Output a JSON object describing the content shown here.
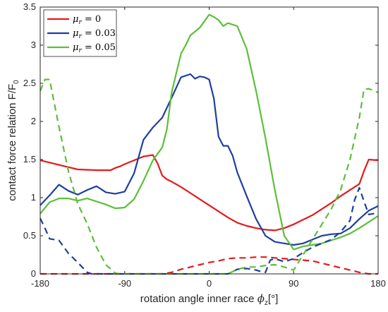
{
  "chart_data": {
    "type": "line",
    "xlabel": "rotation angle inner race",
    "xlabel_symbol": "ϕ",
    "xlabel_sub": "z",
    "xlabel_unit": "[°]",
    "ylabel": "contact force relation F/F",
    "ylabel_sub": "0",
    "xlim": [
      -180,
      180
    ],
    "ylim": [
      0,
      3.5
    ],
    "xticks": [
      -180,
      -90,
      0,
      90,
      180
    ],
    "yticks": [
      0,
      0.5,
      1,
      1.5,
      2,
      2.5,
      3,
      3.5
    ],
    "xtick_labels": [
      "-180",
      "-90",
      "0",
      "90",
      "180"
    ],
    "ytick_labels": [
      "0",
      "0.5",
      "1",
      "1.5",
      "2",
      "2.5",
      "3",
      "3.5"
    ],
    "grid": false,
    "legend_position": "top-left",
    "legend": [
      {
        "symbol": "μ",
        "sub": "r",
        "rest": " = 0",
        "color": "#e31a1c"
      },
      {
        "symbol": "μ",
        "sub": "r",
        "rest": " = 0.03",
        "color": "#1f3f9f"
      },
      {
        "symbol": "μ",
        "sub": "r",
        "rest": " = 0.05",
        "color": "#5bbf3a"
      }
    ],
    "series": [
      {
        "legend_index": 0,
        "style": "solid",
        "color": "#e31a1c",
        "x": [
          -180,
          -160,
          -140,
          -120,
          -105,
          -100,
          -95,
          -90,
          -80,
          -70,
          -60,
          -55,
          -50,
          -45,
          -40,
          -30,
          -20,
          -10,
          0,
          10,
          20,
          30,
          40,
          50,
          60,
          70,
          80,
          90,
          100,
          110,
          120,
          130,
          140,
          150,
          160,
          165,
          170,
          180
        ],
        "y": [
          1.49,
          1.43,
          1.37,
          1.36,
          1.36,
          1.39,
          1.41,
          1.44,
          1.49,
          1.54,
          1.56,
          1.45,
          1.29,
          1.24,
          1.21,
          1.14,
          1.06,
          0.98,
          0.9,
          0.82,
          0.74,
          0.67,
          0.63,
          0.6,
          0.58,
          0.57,
          0.6,
          0.65,
          0.71,
          0.77,
          0.85,
          0.93,
          1.02,
          1.1,
          1.18,
          1.35,
          1.5,
          1.49
        ]
      },
      {
        "legend_index": 1,
        "style": "solid",
        "color": "#1f3f9f",
        "x": [
          -180,
          -170,
          -160,
          -150,
          -140,
          -130,
          -120,
          -115,
          -110,
          -100,
          -90,
          -80,
          -70,
          -60,
          -50,
          -40,
          -30,
          -20,
          -15,
          -10,
          -5,
          0,
          5,
          10,
          15,
          20,
          25,
          30,
          40,
          50,
          60,
          70,
          80,
          90,
          100,
          110,
          120,
          130,
          140,
          150,
          160,
          170,
          180
        ],
        "y": [
          0.9,
          1.03,
          1.17,
          1.09,
          1.04,
          1.1,
          1.15,
          1.11,
          1.07,
          1.05,
          1.08,
          1.32,
          1.76,
          1.92,
          2.05,
          2.31,
          2.58,
          2.62,
          2.56,
          2.59,
          2.58,
          2.55,
          2.3,
          1.8,
          1.68,
          1.68,
          1.55,
          1.33,
          1.02,
          0.72,
          0.5,
          0.42,
          0.4,
          0.38,
          0.4,
          0.45,
          0.5,
          0.52,
          0.53,
          0.6,
          0.72,
          0.83,
          0.89
        ]
      },
      {
        "legend_index": 2,
        "style": "solid",
        "color": "#5bbf3a",
        "x": [
          -180,
          -170,
          -160,
          -150,
          -140,
          -130,
          -120,
          -110,
          -100,
          -90,
          -80,
          -70,
          -60,
          -50,
          -45,
          -40,
          -30,
          -25,
          -20,
          -10,
          0,
          5,
          10,
          15,
          20,
          30,
          40,
          50,
          60,
          70,
          80,
          90,
          100,
          110,
          120,
          130,
          140,
          150,
          160,
          170,
          180
        ],
        "y": [
          0.79,
          0.94,
          0.99,
          0.99,
          0.96,
          0.99,
          0.95,
          0.91,
          0.86,
          0.87,
          0.98,
          1.22,
          1.49,
          1.66,
          1.9,
          2.38,
          2.89,
          3.0,
          3.13,
          3.23,
          3.4,
          3.37,
          3.33,
          3.25,
          3.29,
          3.25,
          2.95,
          2.4,
          1.78,
          1.1,
          0.5,
          0.32,
          0.36,
          0.38,
          0.4,
          0.44,
          0.48,
          0.53,
          0.6,
          0.68,
          0.76
        ]
      },
      {
        "legend_index": 0,
        "style": "dashed",
        "color": "#e31a1c",
        "x": [
          -180,
          -50,
          -40,
          -30,
          -20,
          -10,
          0,
          10,
          20,
          30,
          40,
          50,
          60,
          70,
          80,
          90,
          100,
          110,
          120,
          130,
          140,
          150,
          160,
          170,
          180
        ],
        "y": [
          0,
          0,
          0.02,
          0.06,
          0.09,
          0.12,
          0.15,
          0.17,
          0.2,
          0.21,
          0.21,
          0.22,
          0.22,
          0.21,
          0.2,
          0.19,
          0.18,
          0.17,
          0.14,
          0.11,
          0.08,
          0.05,
          0.02,
          0,
          0
        ]
      },
      {
        "legend_index": 1,
        "style": "dashed",
        "color": "#1f3f9f",
        "x": [
          -180,
          -175,
          -170,
          -160,
          -150,
          -140,
          -130,
          -125,
          20,
          25,
          30,
          40,
          50,
          55,
          60,
          65,
          70,
          80,
          90,
          100,
          110,
          120,
          130,
          140,
          150,
          155,
          160,
          165,
          170,
          180
        ],
        "y": [
          0.73,
          0.6,
          0.46,
          0.44,
          0.27,
          0.15,
          0.02,
          0,
          0,
          0.03,
          0.06,
          0.07,
          0.05,
          0.03,
          0.02,
          0.18,
          0.2,
          0.16,
          0.2,
          0.28,
          0.35,
          0.4,
          0.45,
          0.55,
          0.7,
          0.97,
          1.13,
          0.95,
          0.78,
          0.8
        ]
      },
      {
        "legend_index": 2,
        "style": "dashed",
        "color": "#5bbf3a",
        "x": [
          -180,
          -175,
          -170,
          -160,
          -150,
          -140,
          -130,
          -120,
          -110,
          -100,
          -95,
          20,
          30,
          40,
          50,
          60,
          70,
          80,
          90,
          100,
          110,
          120,
          130,
          140,
          150,
          160,
          165,
          170,
          180
        ],
        "y": [
          2.4,
          2.55,
          2.55,
          1.93,
          1.35,
          0.92,
          0.66,
          0.35,
          0.12,
          0.01,
          0,
          0,
          0.06,
          0.09,
          0.09,
          0.11,
          0.12,
          0.09,
          0.05,
          0.25,
          0.45,
          0.65,
          0.85,
          1.1,
          1.5,
          2.05,
          2.42,
          2.43,
          2.38
        ]
      }
    ]
  }
}
